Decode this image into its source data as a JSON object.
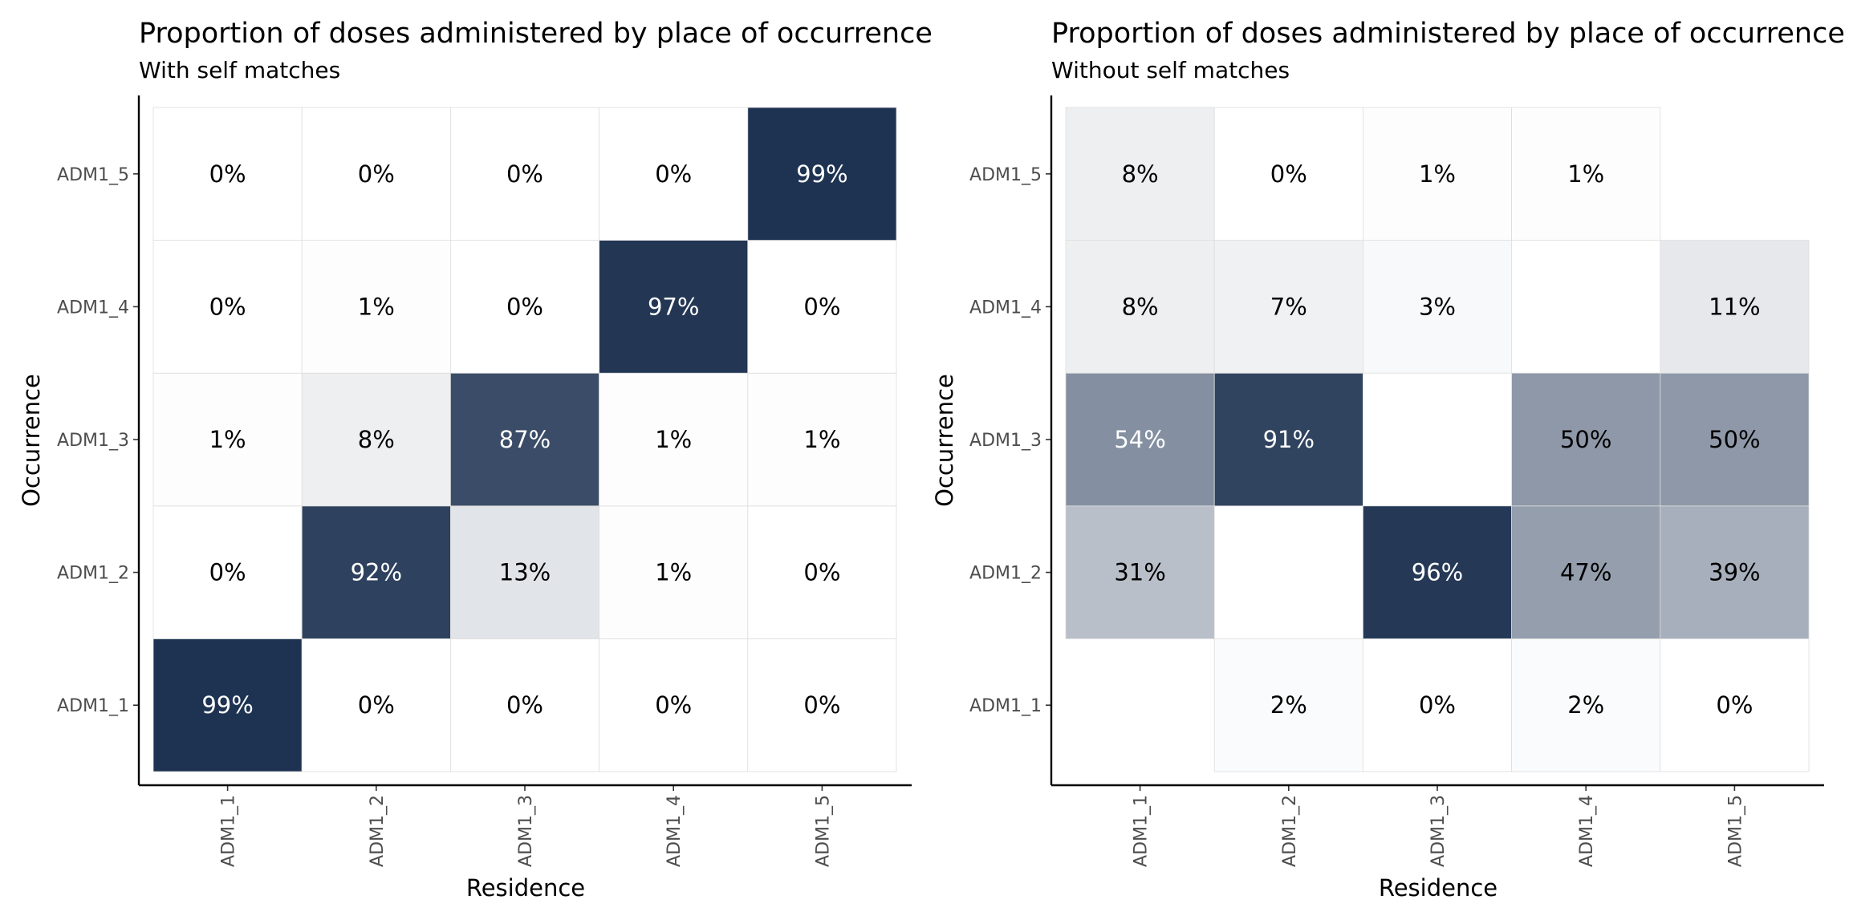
{
  "figure_background": "#ffffff",
  "color_scale": {
    "low": "#ffffff",
    "high": "#1c3150",
    "cell_border": "#dddddd",
    "label_dark": "#000000",
    "label_light": "#ffffff"
  },
  "chart_data": [
    {
      "type": "heatmap",
      "title": "Proportion of doses administered by place of occurrence",
      "subtitle": "With self matches",
      "xlabel": "Residence",
      "ylabel": "Occurrence",
      "x_categories": [
        "ADM1_1",
        "ADM1_2",
        "ADM1_3",
        "ADM1_4",
        "ADM1_5"
      ],
      "y_categories": [
        "ADM1_1",
        "ADM1_2",
        "ADM1_3",
        "ADM1_4",
        "ADM1_5"
      ],
      "cells": [
        {
          "x": "ADM1_1",
          "y": "ADM1_1",
          "value": 99,
          "label": "99%"
        },
        {
          "x": "ADM1_2",
          "y": "ADM1_1",
          "value": 0,
          "label": "0%"
        },
        {
          "x": "ADM1_3",
          "y": "ADM1_1",
          "value": 0,
          "label": "0%"
        },
        {
          "x": "ADM1_4",
          "y": "ADM1_1",
          "value": 0,
          "label": "0%"
        },
        {
          "x": "ADM1_5",
          "y": "ADM1_1",
          "value": 0,
          "label": "0%"
        },
        {
          "x": "ADM1_1",
          "y": "ADM1_2",
          "value": 0,
          "label": "0%"
        },
        {
          "x": "ADM1_2",
          "y": "ADM1_2",
          "value": 92,
          "label": "92%"
        },
        {
          "x": "ADM1_3",
          "y": "ADM1_2",
          "value": 13,
          "label": "13%"
        },
        {
          "x": "ADM1_4",
          "y": "ADM1_2",
          "value": 1,
          "label": "1%"
        },
        {
          "x": "ADM1_5",
          "y": "ADM1_2",
          "value": 0,
          "label": "0%"
        },
        {
          "x": "ADM1_1",
          "y": "ADM1_3",
          "value": 1,
          "label": "1%"
        },
        {
          "x": "ADM1_2",
          "y": "ADM1_3",
          "value": 8,
          "label": "8%"
        },
        {
          "x": "ADM1_3",
          "y": "ADM1_3",
          "value": 87,
          "label": "87%"
        },
        {
          "x": "ADM1_4",
          "y": "ADM1_3",
          "value": 1,
          "label": "1%"
        },
        {
          "x": "ADM1_5",
          "y": "ADM1_3",
          "value": 1,
          "label": "1%"
        },
        {
          "x": "ADM1_1",
          "y": "ADM1_4",
          "value": 0,
          "label": "0%"
        },
        {
          "x": "ADM1_2",
          "y": "ADM1_4",
          "value": 1,
          "label": "1%"
        },
        {
          "x": "ADM1_3",
          "y": "ADM1_4",
          "value": 0,
          "label": "0%"
        },
        {
          "x": "ADM1_4",
          "y": "ADM1_4",
          "value": 97,
          "label": "97%"
        },
        {
          "x": "ADM1_5",
          "y": "ADM1_4",
          "value": 0,
          "label": "0%"
        },
        {
          "x": "ADM1_1",
          "y": "ADM1_5",
          "value": 0,
          "label": "0%"
        },
        {
          "x": "ADM1_2",
          "y": "ADM1_5",
          "value": 0,
          "label": "0%"
        },
        {
          "x": "ADM1_3",
          "y": "ADM1_5",
          "value": 0,
          "label": "0%"
        },
        {
          "x": "ADM1_4",
          "y": "ADM1_5",
          "value": 0,
          "label": "0%"
        },
        {
          "x": "ADM1_5",
          "y": "ADM1_5",
          "value": 99,
          "label": "99%"
        }
      ]
    },
    {
      "type": "heatmap",
      "title": "Proportion of doses administered by place of occurrence",
      "subtitle": "Without self matches",
      "xlabel": "Residence",
      "ylabel": "Occurrence",
      "x_categories": [
        "ADM1_1",
        "ADM1_2",
        "ADM1_3",
        "ADM1_4",
        "ADM1_5"
      ],
      "y_categories": [
        "ADM1_1",
        "ADM1_2",
        "ADM1_3",
        "ADM1_4",
        "ADM1_5"
      ],
      "cells": [
        {
          "x": "ADM1_2",
          "y": "ADM1_1",
          "value": 2,
          "label": "2%"
        },
        {
          "x": "ADM1_3",
          "y": "ADM1_1",
          "value": 0,
          "label": "0%"
        },
        {
          "x": "ADM1_4",
          "y": "ADM1_1",
          "value": 2,
          "label": "2%"
        },
        {
          "x": "ADM1_5",
          "y": "ADM1_1",
          "value": 0,
          "label": "0%"
        },
        {
          "x": "ADM1_1",
          "y": "ADM1_2",
          "value": 31,
          "label": "31%"
        },
        {
          "x": "ADM1_3",
          "y": "ADM1_2",
          "value": 96,
          "label": "96%"
        },
        {
          "x": "ADM1_4",
          "y": "ADM1_2",
          "value": 47,
          "label": "47%"
        },
        {
          "x": "ADM1_5",
          "y": "ADM1_2",
          "value": 39,
          "label": "39%"
        },
        {
          "x": "ADM1_1",
          "y": "ADM1_3",
          "value": 54,
          "label": "54%"
        },
        {
          "x": "ADM1_2",
          "y": "ADM1_3",
          "value": 91,
          "label": "91%"
        },
        {
          "x": "ADM1_4",
          "y": "ADM1_3",
          "value": 50,
          "label": "50%"
        },
        {
          "x": "ADM1_5",
          "y": "ADM1_3",
          "value": 50,
          "label": "50%"
        },
        {
          "x": "ADM1_1",
          "y": "ADM1_4",
          "value": 8,
          "label": "8%"
        },
        {
          "x": "ADM1_2",
          "y": "ADM1_4",
          "value": 7,
          "label": "7%"
        },
        {
          "x": "ADM1_3",
          "y": "ADM1_4",
          "value": 3,
          "label": "3%"
        },
        {
          "x": "ADM1_5",
          "y": "ADM1_4",
          "value": 11,
          "label": "11%"
        },
        {
          "x": "ADM1_1",
          "y": "ADM1_5",
          "value": 8,
          "label": "8%"
        },
        {
          "x": "ADM1_2",
          "y": "ADM1_5",
          "value": 0,
          "label": "0%"
        },
        {
          "x": "ADM1_3",
          "y": "ADM1_5",
          "value": 1,
          "label": "1%"
        },
        {
          "x": "ADM1_4",
          "y": "ADM1_5",
          "value": 1,
          "label": "1%"
        }
      ]
    }
  ]
}
